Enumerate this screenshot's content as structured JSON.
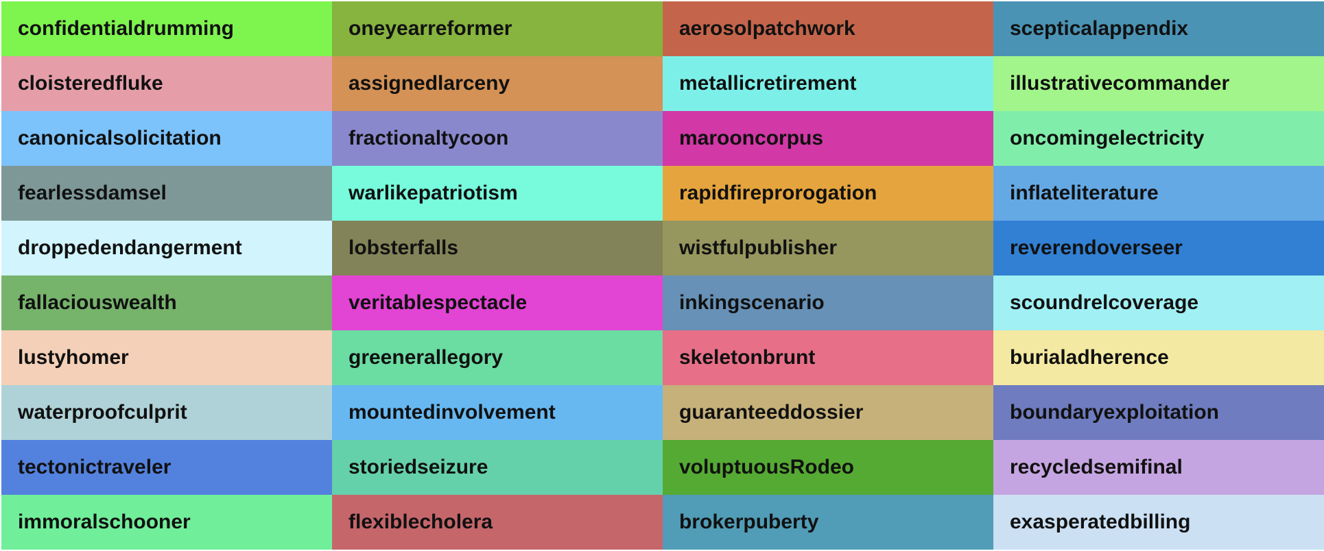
{
  "cells": [
    {
      "label": "confidentialdrumming",
      "color": "#7ef44f"
    },
    {
      "label": "oneyearreformer",
      "color": "#87b33f"
    },
    {
      "label": "aerosolpatchwork",
      "color": "#c4654b"
    },
    {
      "label": "scepticalappendix",
      "color": "#4a93b5"
    },
    {
      "label": "cloisteredfluke",
      "color": "#e59ea8"
    },
    {
      "label": "assignedlarceny",
      "color": "#d49256"
    },
    {
      "label": "metallicretirement",
      "color": "#7cf0e8"
    },
    {
      "label": "illustrativecommander",
      "color": "#a2f58a"
    },
    {
      "label": "canonicalsolicitation",
      "color": "#7cc2fb"
    },
    {
      "label": "fractionaltycoon",
      "color": "#8a88cc"
    },
    {
      "label": "marooncorpus",
      "color": "#d238a6"
    },
    {
      "label": "oncomingelectricity",
      "color": "#80eeaa"
    },
    {
      "label": "fearlessdamsel",
      "color": "#7e9898"
    },
    {
      "label": "warlikepatriotism",
      "color": "#77fbdc"
    },
    {
      "label": "rapidfireprorogation",
      "color": "#e5a43e"
    },
    {
      "label": "inflateliterature",
      "color": "#64a9e4"
    },
    {
      "label": "droppedendangerment",
      "color": "#d1f4fd"
    },
    {
      "label": "lobsterfalls",
      "color": "#828358"
    },
    {
      "label": "wistfulpublisher",
      "color": "#96965f"
    },
    {
      "label": "reverendoverseer",
      "color": "#3180d3"
    },
    {
      "label": "fallaciouswealth",
      "color": "#76b36b"
    },
    {
      "label": "veritablespectacle",
      "color": "#e244d4"
    },
    {
      "label": "inkingscenario",
      "color": "#6791b6"
    },
    {
      "label": "scoundrelcoverage",
      "color": "#a1f0f4"
    },
    {
      "label": "lustyhomer",
      "color": "#f3d0b7"
    },
    {
      "label": "greenerallegory",
      "color": "#6bdca2"
    },
    {
      "label": "skeletonbrunt",
      "color": "#e76f88"
    },
    {
      "label": "burialadherence",
      "color": "#f3e9a2"
    },
    {
      "label": "waterproofculprit",
      "color": "#afd2d8"
    },
    {
      "label": "mountedinvolvement",
      "color": "#67b8f1"
    },
    {
      "label": "guaranteeddossier",
      "color": "#c6b17a"
    },
    {
      "label": "boundaryexploitation",
      "color": "#6f7cbf"
    },
    {
      "label": "tectonictraveler",
      "color": "#5381de"
    },
    {
      "label": "storiedseizure",
      "color": "#65d1ab"
    },
    {
      "label": "voluptuousRodeo",
      "color": "#55aa33"
    },
    {
      "label": "recycledsemifinal",
      "color": "#c5a5e1"
    },
    {
      "label": "immoralschooner",
      "color": "#71ee9a"
    },
    {
      "label": "flexiblecholera",
      "color": "#c5666b"
    },
    {
      "label": "brokerpuberty",
      "color": "#519cb7"
    },
    {
      "label": "exasperatedbilling",
      "color": "#cbe0f3"
    }
  ]
}
